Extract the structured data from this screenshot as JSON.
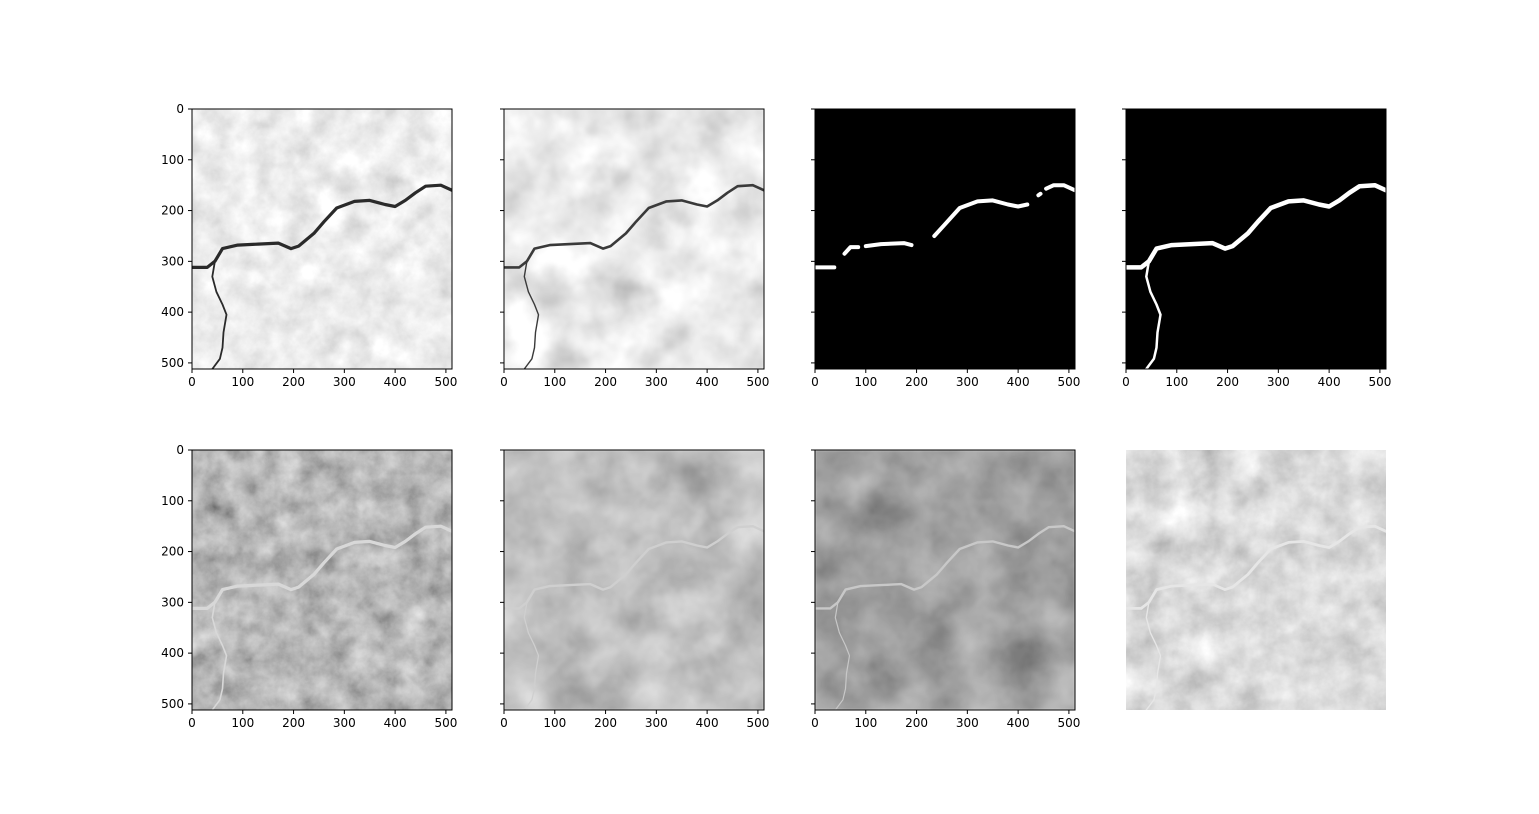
{
  "figure": {
    "axis": {
      "xlim": [
        0,
        512
      ],
      "ylim": [
        512,
        0
      ],
      "ticks": [
        0,
        100,
        200,
        300,
        400,
        500
      ]
    },
    "panels": [
      {
        "id": "r1c1",
        "kind": "gray-bright",
        "ylabels": true,
        "xlabels": true,
        "axis_visible": true
      },
      {
        "id": "r1c2",
        "kind": "gray-bright-blur",
        "ylabels": false,
        "xlabels": true,
        "axis_visible": true
      },
      {
        "id": "r1c3",
        "kind": "mask-partial",
        "ylabels": false,
        "xlabels": true,
        "axis_visible": true
      },
      {
        "id": "r1c4",
        "kind": "mask-full",
        "ylabels": false,
        "xlabels": true,
        "axis_visible": true
      },
      {
        "id": "r2c1",
        "kind": "dark-sharp",
        "ylabels": true,
        "xlabels": true,
        "axis_visible": true
      },
      {
        "id": "r2c2",
        "kind": "dark-mid",
        "ylabels": false,
        "xlabels": true,
        "axis_visible": true
      },
      {
        "id": "r2c3",
        "kind": "dark-darker",
        "ylabels": false,
        "xlabels": true,
        "axis_visible": true
      },
      {
        "id": "r2c4",
        "kind": "gray-mid",
        "ylabels": false,
        "xlabels": false,
        "axis_visible": false
      }
    ],
    "river_main": [
      [
        0,
        312
      ],
      [
        30,
        312
      ],
      [
        45,
        300
      ],
      [
        60,
        275
      ],
      [
        90,
        268
      ],
      [
        130,
        266
      ],
      [
        170,
        264
      ],
      [
        195,
        275
      ],
      [
        210,
        270
      ],
      [
        240,
        245
      ],
      [
        260,
        222
      ],
      [
        285,
        195
      ],
      [
        320,
        182
      ],
      [
        350,
        180
      ],
      [
        380,
        188
      ],
      [
        400,
        192
      ],
      [
        420,
        180
      ],
      [
        440,
        165
      ],
      [
        460,
        152
      ],
      [
        490,
        150
      ],
      [
        512,
        160
      ]
    ],
    "river_branch": [
      [
        45,
        300
      ],
      [
        40,
        330
      ],
      [
        48,
        360
      ],
      [
        60,
        385
      ],
      [
        68,
        405
      ],
      [
        62,
        440
      ],
      [
        60,
        470
      ],
      [
        55,
        492
      ],
      [
        40,
        512
      ]
    ],
    "mask_segments": [
      [
        [
          0,
          312
        ],
        [
          38,
          312
        ]
      ],
      [
        [
          58,
          285
        ],
        [
          70,
          272
        ],
        [
          85,
          272
        ]
      ],
      [
        [
          100,
          270
        ],
        [
          130,
          266
        ],
        [
          175,
          264
        ],
        [
          190,
          268
        ]
      ],
      [
        [
          235,
          250
        ],
        [
          255,
          228
        ],
        [
          285,
          195
        ],
        [
          320,
          182
        ],
        [
          350,
          180
        ],
        [
          380,
          188
        ],
        [
          400,
          192
        ],
        [
          418,
          188
        ]
      ],
      [
        [
          440,
          170
        ]
      ],
      [
        [
          455,
          157
        ],
        [
          470,
          150
        ],
        [
          490,
          150
        ],
        [
          512,
          160
        ]
      ]
    ],
    "colors": {
      "frame": "#000000",
      "mask_bg": "#000000",
      "mask_fg": "#ffffff"
    }
  }
}
